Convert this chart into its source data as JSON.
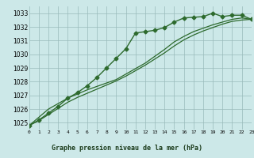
{
  "title": "Graphe pression niveau de la mer (hPa)",
  "background_color": "#cce8e8",
  "grid_color": "#99bbbb",
  "line_color": "#2d6a2d",
  "ylim": [
    1024.5,
    1033.5
  ],
  "xlim": [
    0,
    23
  ],
  "yticks": [
    1025,
    1026,
    1027,
    1028,
    1029,
    1030,
    1031,
    1032,
    1033
  ],
  "xticks": [
    0,
    1,
    2,
    3,
    4,
    5,
    6,
    7,
    8,
    9,
    10,
    11,
    12,
    13,
    14,
    15,
    16,
    17,
    18,
    19,
    20,
    21,
    22,
    23
  ],
  "x_labels": [
    "0",
    "1",
    "2",
    "3",
    "4",
    "5",
    "6",
    "7",
    "8",
    "9",
    "10",
    "11",
    "12",
    "13",
    "14",
    "15",
    "16",
    "17",
    "18",
    "19",
    "20",
    "21",
    "22",
    "23"
  ],
  "series": [
    {
      "x": [
        0,
        1,
        2,
        3,
        4,
        5,
        6,
        7,
        8,
        9,
        10,
        11,
        12,
        13,
        14,
        15,
        16,
        17,
        18,
        19,
        20,
        21,
        22,
        23
      ],
      "y": [
        1024.8,
        1025.2,
        1025.7,
        1026.2,
        1026.8,
        1027.2,
        1027.7,
        1028.3,
        1029.0,
        1029.7,
        1030.4,
        1031.55,
        1031.65,
        1031.75,
        1031.95,
        1032.35,
        1032.65,
        1032.7,
        1032.75,
        1033.0,
        1032.75,
        1032.85,
        1032.85,
        1032.55
      ],
      "marker": "D",
      "markersize": 2.5,
      "linewidth": 1.0
    },
    {
      "x": [
        0,
        1,
        2,
        3,
        4,
        5,
        6,
        7,
        8,
        9,
        10,
        11,
        12,
        13,
        14,
        15,
        16,
        17,
        18,
        19,
        20,
        21,
        22,
        23
      ],
      "y": [
        1024.8,
        1025.4,
        1026.0,
        1026.4,
        1026.8,
        1027.1,
        1027.4,
        1027.65,
        1027.9,
        1028.15,
        1028.55,
        1028.95,
        1029.35,
        1029.85,
        1030.35,
        1030.9,
        1031.3,
        1031.65,
        1031.9,
        1032.15,
        1032.35,
        1032.55,
        1032.65,
        1032.55
      ],
      "marker": null,
      "markersize": 0,
      "linewidth": 0.9
    },
    {
      "x": [
        0,
        1,
        2,
        3,
        4,
        5,
        6,
        7,
        8,
        9,
        10,
        11,
        12,
        13,
        14,
        15,
        16,
        17,
        18,
        19,
        20,
        21,
        22,
        23
      ],
      "y": [
        1024.8,
        1025.15,
        1025.6,
        1026.05,
        1026.5,
        1026.85,
        1027.15,
        1027.45,
        1027.75,
        1028.05,
        1028.4,
        1028.8,
        1029.2,
        1029.65,
        1030.1,
        1030.6,
        1031.05,
        1031.4,
        1031.7,
        1031.95,
        1032.2,
        1032.4,
        1032.5,
        1032.55
      ],
      "marker": null,
      "markersize": 0,
      "linewidth": 0.9
    }
  ]
}
